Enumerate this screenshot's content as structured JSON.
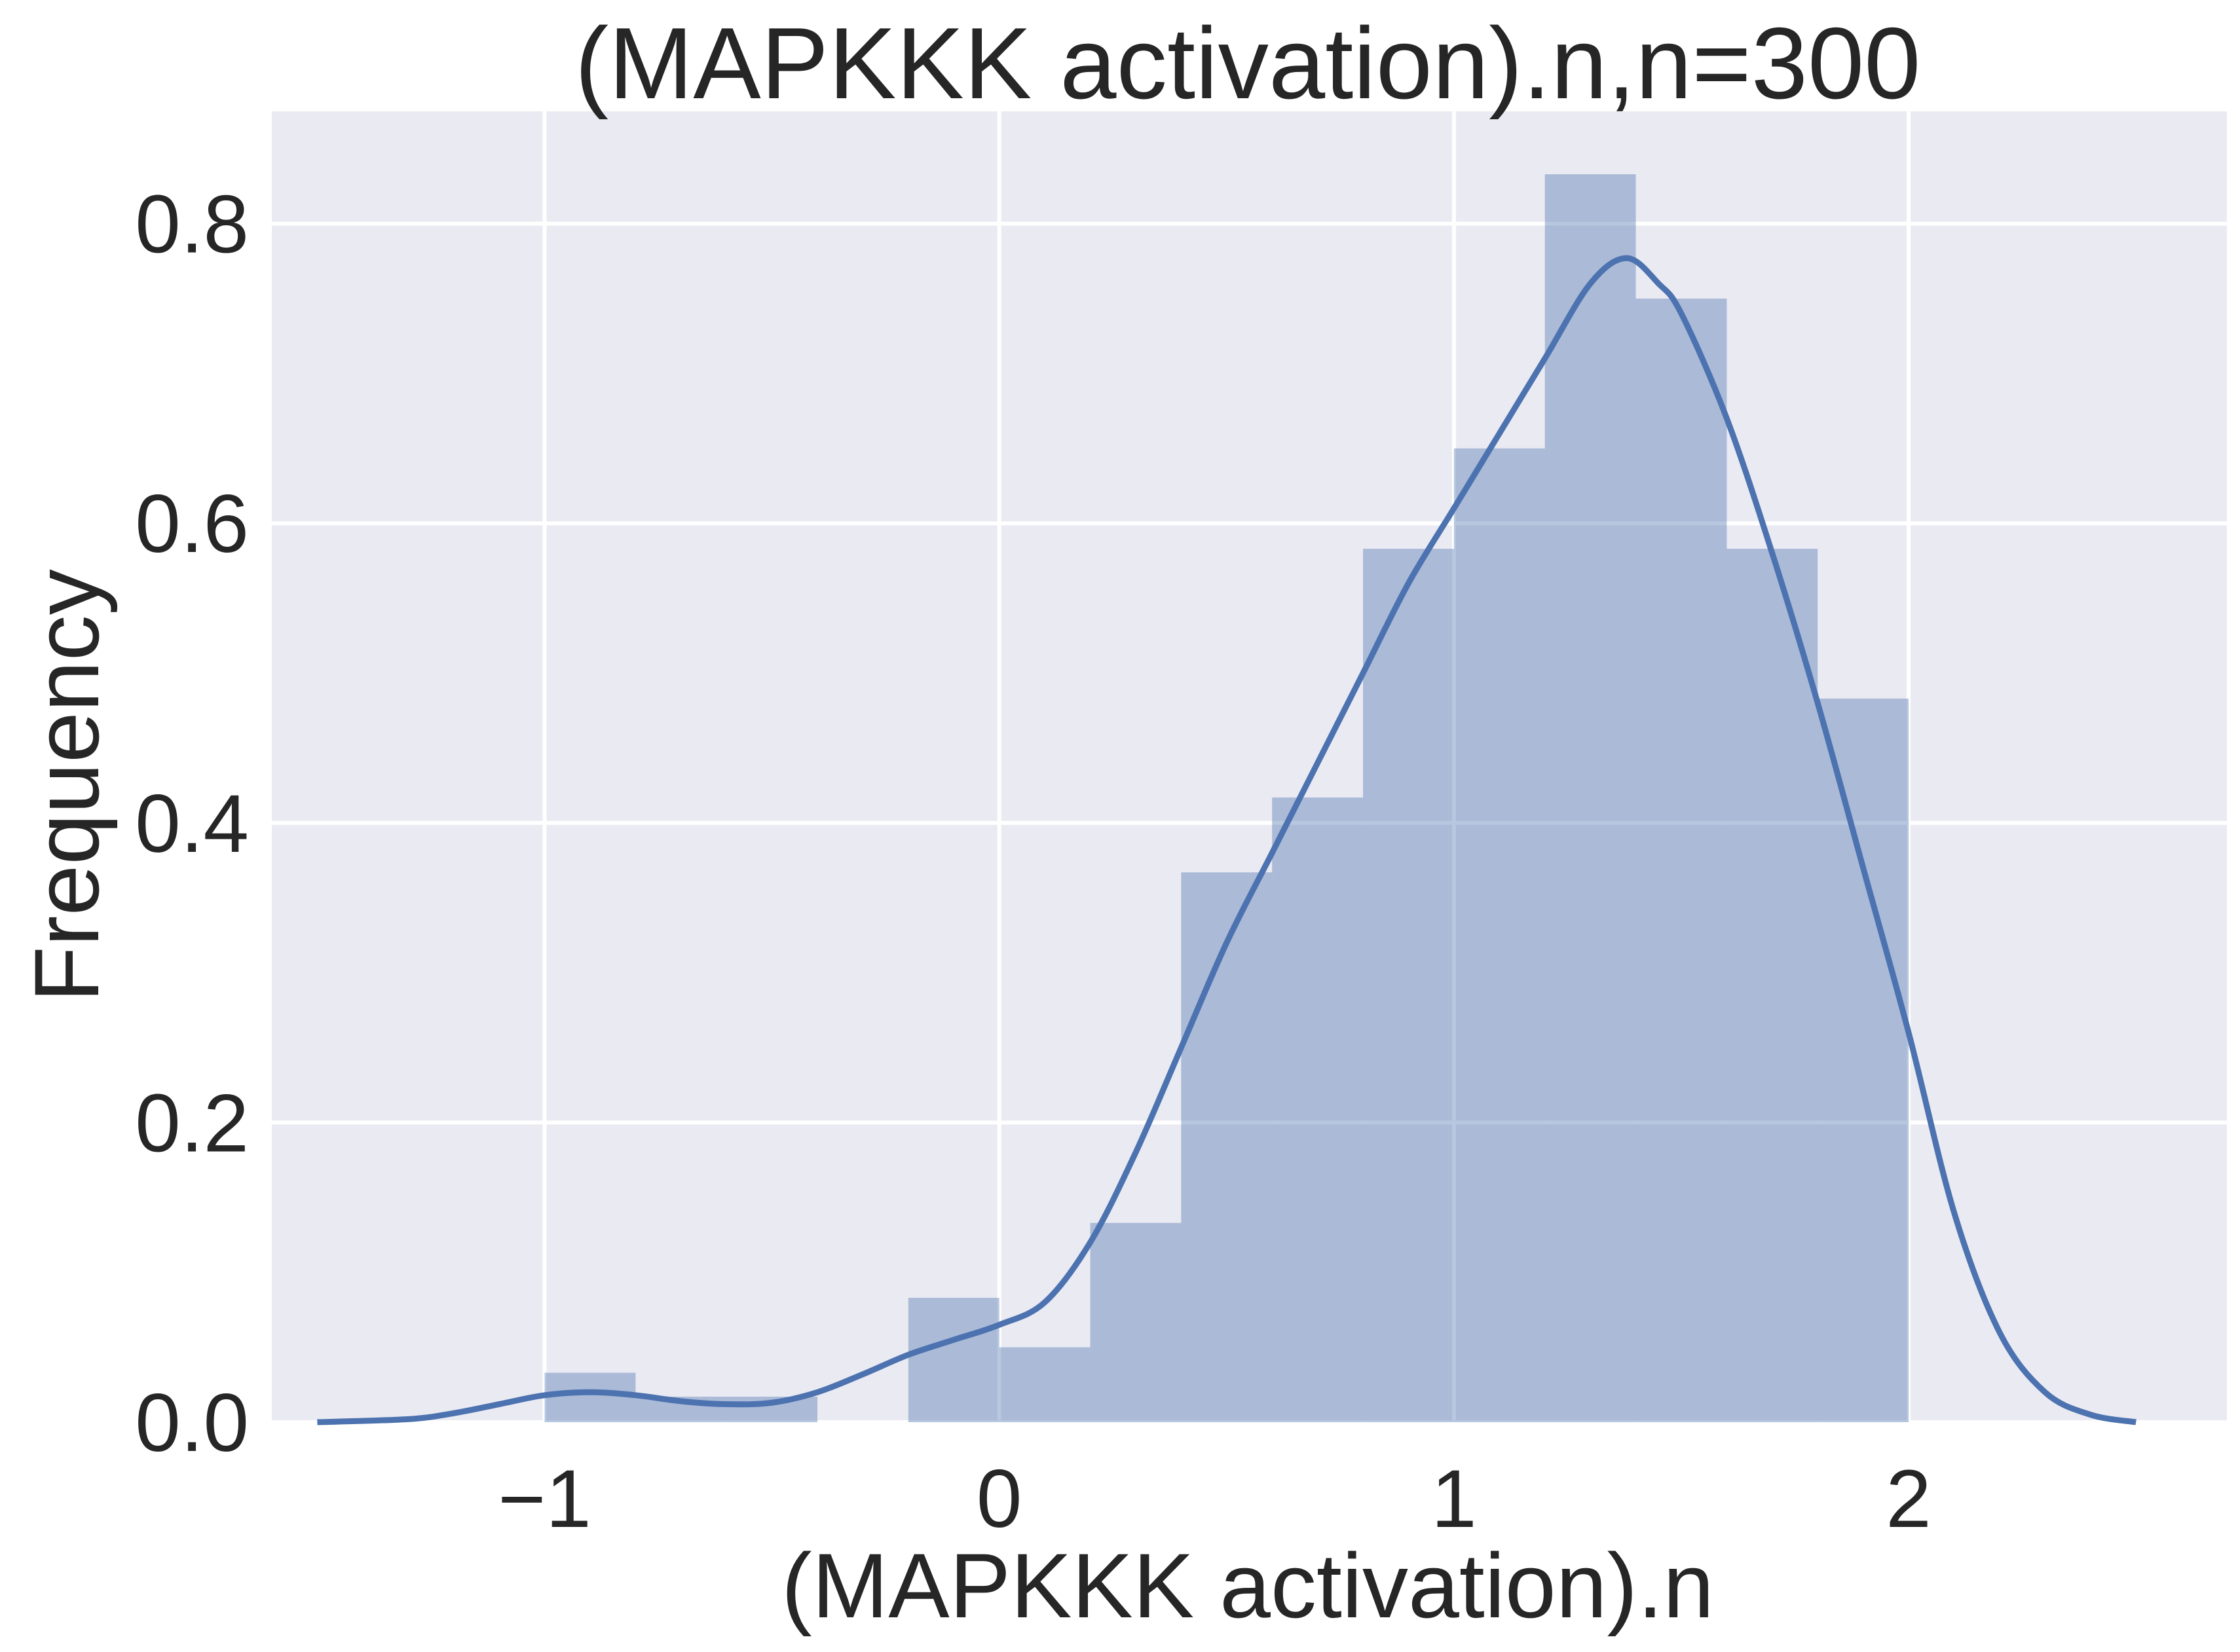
{
  "chart_data": {
    "type": "bar",
    "title": "(MAPKKK activation).n,n=300",
    "xlabel": "(MAPKKK activation).n",
    "ylabel": "Frequency",
    "xlim": [
      -1.6,
      2.7
    ],
    "ylim": [
      0,
      0.875
    ],
    "xticks": [
      -1,
      0,
      1,
      2
    ],
    "xtick_labels": [
      "−1",
      "0",
      "1",
      "2"
    ],
    "yticks": [
      0,
      0.2,
      0.4,
      0.6,
      0.8
    ],
    "ytick_labels": [
      "0.0",
      "0.2",
      "0.4",
      "0.6",
      "0.8"
    ],
    "grid": true,
    "bar_color": "#4c72b0",
    "bar_opacity": 0.4,
    "line_color": "#4c72b0",
    "background": "#eaeaf2",
    "bins": [
      {
        "x0": -1.0,
        "x1": -0.8,
        "value": 0.033
      },
      {
        "x0": -0.8,
        "x1": -0.6,
        "value": 0.017
      },
      {
        "x0": -0.6,
        "x1": -0.4,
        "value": 0.017
      },
      {
        "x0": -0.4,
        "x1": -0.2,
        "value": 0.0
      },
      {
        "x0": -0.2,
        "x1": 0.0,
        "value": 0.083
      },
      {
        "x0": 0.0,
        "x1": 0.2,
        "value": 0.05
      },
      {
        "x0": 0.2,
        "x1": 0.4,
        "value": 0.133
      },
      {
        "x0": 0.4,
        "x1": 0.6,
        "value": 0.367
      },
      {
        "x0": 0.6,
        "x1": 0.8,
        "value": 0.417
      },
      {
        "x0": 0.8,
        "x1": 1.0,
        "value": 0.583
      },
      {
        "x0": 1.0,
        "x1": 1.2,
        "value": 0.65
      },
      {
        "x0": 1.2,
        "x1": 1.4,
        "value": 0.833
      },
      {
        "x0": 1.4,
        "x1": 1.6,
        "value": 0.75
      },
      {
        "x0": 1.6,
        "x1": 1.8,
        "value": 0.583
      },
      {
        "x0": 1.8,
        "x1": 2.0,
        "value": 0.483
      }
    ],
    "kde": {
      "x": [
        -1.5,
        -1.3,
        -1.2,
        -1.1,
        -1.0,
        -0.9,
        -0.8,
        -0.7,
        -0.6,
        -0.5,
        -0.4,
        -0.3,
        -0.2,
        -0.1,
        0.0,
        0.1,
        0.2,
        0.3,
        0.4,
        0.5,
        0.6,
        0.7,
        0.8,
        0.9,
        1.0,
        1.1,
        1.2,
        1.3,
        1.38,
        1.45,
        1.5,
        1.6,
        1.7,
        1.8,
        1.9,
        2.0,
        2.1,
        2.2,
        2.3,
        2.4,
        2.5
      ],
      "y": [
        0.0,
        0.002,
        0.006,
        0.012,
        0.018,
        0.02,
        0.018,
        0.014,
        0.012,
        0.013,
        0.02,
        0.032,
        0.045,
        0.055,
        0.065,
        0.08,
        0.12,
        0.18,
        0.25,
        0.32,
        0.38,
        0.44,
        0.5,
        0.56,
        0.61,
        0.66,
        0.71,
        0.76,
        0.777,
        0.76,
        0.74,
        0.67,
        0.58,
        0.48,
        0.37,
        0.26,
        0.14,
        0.06,
        0.02,
        0.005,
        0.0
      ]
    }
  }
}
